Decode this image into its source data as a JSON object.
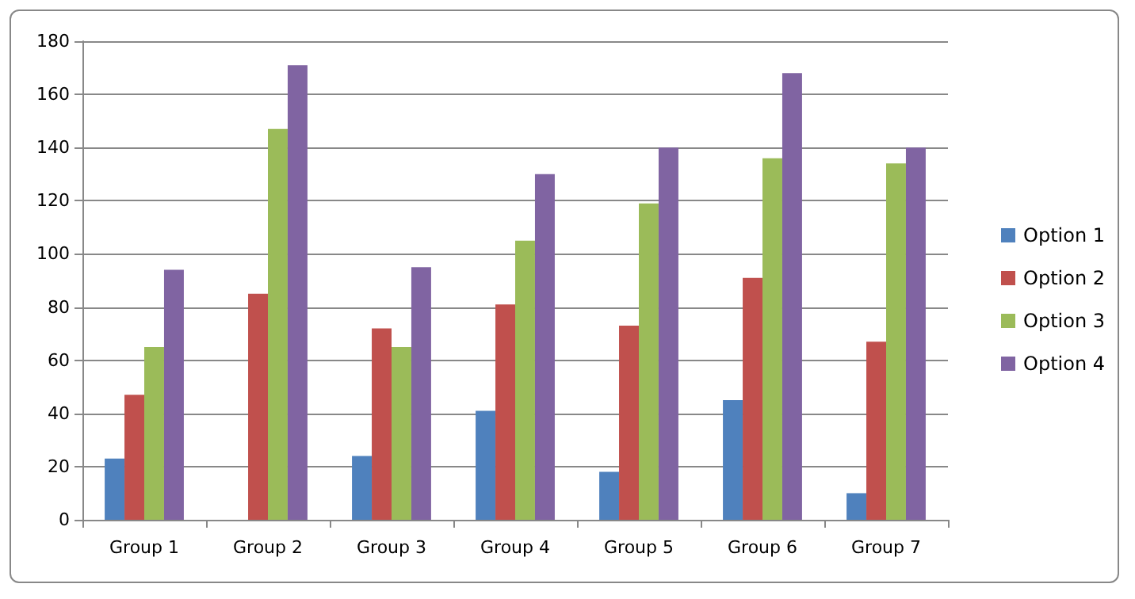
{
  "chart_data": {
    "type": "bar",
    "categories": [
      "Group 1",
      "Group 2",
      "Group 3",
      "Group 4",
      "Group 5",
      "Group 6",
      "Group 7"
    ],
    "series": [
      {
        "name": "Option 1",
        "color": "#4f81bd",
        "values": [
          23,
          0,
          24,
          41,
          18,
          45,
          10
        ]
      },
      {
        "name": "Option 2",
        "color": "#c0504d",
        "values": [
          47,
          85,
          72,
          81,
          73,
          91,
          67
        ]
      },
      {
        "name": "Option 3",
        "color": "#9bbb59",
        "values": [
          65,
          147,
          65,
          105,
          119,
          136,
          134
        ]
      },
      {
        "name": "Option 4",
        "color": "#8064a2",
        "values": [
          94,
          171,
          95,
          130,
          140,
          168,
          140
        ]
      }
    ],
    "ylim": [
      0,
      180
    ],
    "yticks": [
      0,
      20,
      40,
      60,
      80,
      100,
      120,
      140,
      160,
      180
    ],
    "grid": "y",
    "legend": "right"
  }
}
